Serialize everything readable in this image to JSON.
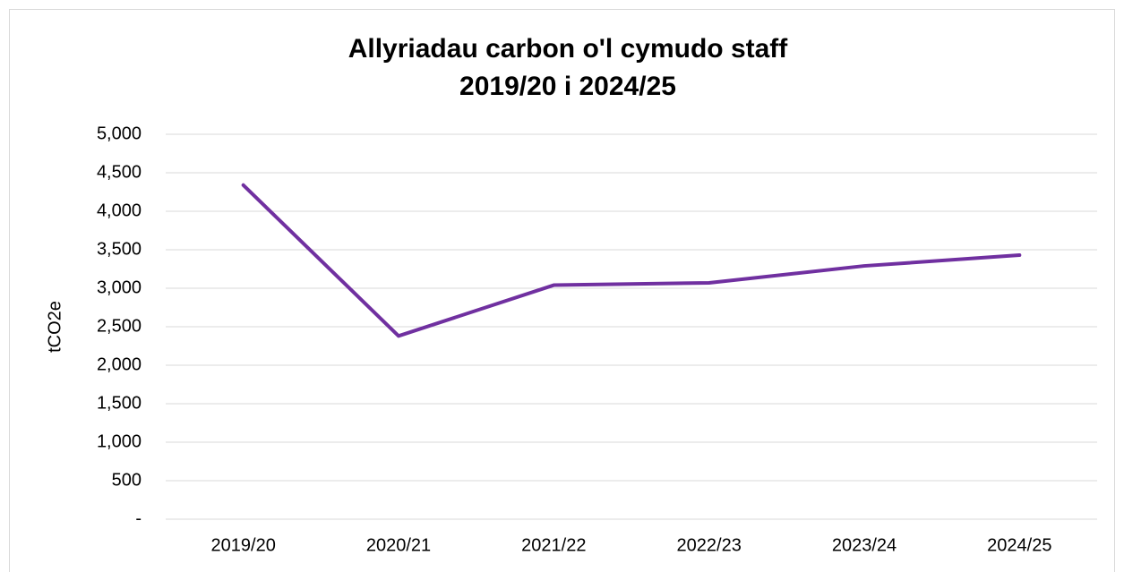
{
  "chart_data": {
    "type": "line",
    "title": [
      "Allyriadau carbon o'l cymudo staff",
      "2019/20 i 2024/25"
    ],
    "y_label": "tCO2e",
    "categories": [
      "2019/20",
      "2020/21",
      "2021/22",
      "2022/23",
      "2023/24",
      "2024/25"
    ],
    "series": [
      {
        "name": "tCO2e",
        "color": "#7030a0",
        "values": [
          4340,
          2380,
          3040,
          3070,
          3290,
          3430
        ]
      }
    ],
    "ylim": [
      0,
      5000
    ],
    "yticks": [
      {
        "value": 0,
        "label": "-"
      },
      500,
      {
        "value": 1000,
        "label": "1,000"
      },
      {
        "value": 1500,
        "label": "1,500"
      },
      {
        "value": 2000,
        "label": "2,000"
      },
      {
        "value": 2500,
        "label": "2,500"
      },
      {
        "value": 3000,
        "label": "3,000"
      },
      {
        "value": 3500,
        "label": "3,500"
      },
      {
        "value": 4000,
        "label": "4,000"
      },
      {
        "value": 4500,
        "label": "4,500"
      },
      {
        "value": 5000,
        "label": "5,000"
      }
    ],
    "grid": true
  }
}
